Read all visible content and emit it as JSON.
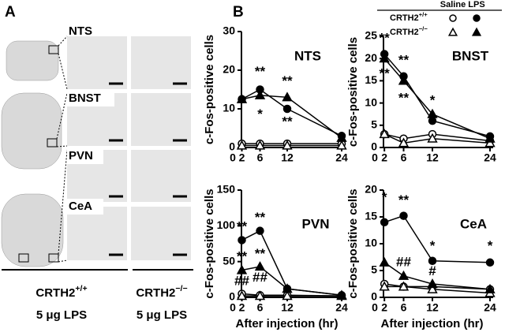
{
  "panel_a": {
    "letter": "A",
    "regions": [
      "NTS",
      "BNST",
      "PVN",
      "CeA"
    ],
    "groups": [
      {
        "base": "CRTH2",
        "sup": "+/+",
        "dose": "5 μg LPS"
      },
      {
        "base": "CRTH2",
        "sup": "−/−",
        "dose": "5 μg LPS"
      }
    ]
  },
  "panel_b": {
    "letter": "B",
    "legend": {
      "columns": [
        "Saline",
        "LPS"
      ],
      "rows": [
        {
          "base": "CRTH2",
          "sup": "+/+"
        },
        {
          "base": "CRTH2",
          "sup": "−/−"
        }
      ]
    }
  },
  "chart_data": [
    {
      "type": "line",
      "title": "NTS",
      "ylabel": "c-Fos-positive cells",
      "x": [
        2,
        6,
        12,
        24
      ],
      "xlim": [
        0,
        24
      ],
      "xticks": [
        0,
        2,
        6,
        12,
        24
      ],
      "ylim": [
        0,
        30
      ],
      "yticks": [
        0,
        10,
        20,
        30
      ],
      "series": [
        {
          "marker": "circle",
          "filled": false,
          "color": "#000000",
          "values": [
            1,
            1,
            1,
            1
          ]
        },
        {
          "marker": "circle",
          "filled": true,
          "color": "#000000",
          "values": [
            12.5,
            15,
            10,
            3
          ]
        },
        {
          "marker": "triangle",
          "filled": false,
          "color": "#000000",
          "values": [
            0.5,
            0.5,
            0.5,
            0.5
          ]
        },
        {
          "marker": "triangle",
          "filled": true,
          "color": "#000000",
          "values": [
            12.5,
            13.5,
            13,
            2.5
          ]
        }
      ],
      "annotations": [
        {
          "text": "**",
          "x": 6,
          "y": 19.5
        },
        {
          "text": "*",
          "x": 6,
          "y": 8.5
        },
        {
          "text": "**",
          "x": 12,
          "y": 17
        },
        {
          "text": "**",
          "x": 12,
          "y": 6.5
        }
      ]
    },
    {
      "type": "line",
      "title": "BNST",
      "ylabel": "c-Fos-positive cells",
      "x": [
        2,
        6,
        12,
        24
      ],
      "xlim": [
        0,
        24
      ],
      "xticks": [
        0,
        2,
        6,
        12,
        24
      ],
      "ylim": [
        0,
        25
      ],
      "yticks": [
        0,
        5,
        10,
        15,
        20,
        25
      ],
      "series": [
        {
          "marker": "circle",
          "filled": false,
          "color": "#000000",
          "values": [
            3,
            2,
            3,
            1.5
          ]
        },
        {
          "marker": "circle",
          "filled": true,
          "color": "#000000",
          "values": [
            21,
            16,
            6,
            2.5
          ]
        },
        {
          "marker": "triangle",
          "filled": false,
          "color": "#000000",
          "values": [
            3,
            1,
            2,
            1
          ]
        },
        {
          "marker": "triangle",
          "filled": true,
          "color": "#000000",
          "values": [
            20,
            15,
            7.5,
            2
          ]
        }
      ],
      "annotations": [
        {
          "text": "**",
          "x": 2,
          "y": 24.5
        },
        {
          "text": "**",
          "x": 2,
          "y": 16.5
        },
        {
          "text": "**",
          "x": 6,
          "y": 19.5
        },
        {
          "text": "**",
          "x": 6,
          "y": 11
        },
        {
          "text": "*",
          "x": 12,
          "y": 10.5
        }
      ]
    },
    {
      "type": "line",
      "title": "PVN",
      "ylabel": "c-Fos-positive cells",
      "xlabel": "After injection (hr)",
      "x": [
        2,
        6,
        12,
        24
      ],
      "xlim": [
        0,
        24
      ],
      "xticks": [
        0,
        2,
        6,
        12,
        24
      ],
      "ylim": [
        0,
        150
      ],
      "yticks": [
        0,
        50,
        100,
        150
      ],
      "series": [
        {
          "marker": "circle",
          "filled": false,
          "color": "#000000",
          "values": [
            5,
            3,
            3,
            2
          ]
        },
        {
          "marker": "circle",
          "filled": true,
          "color": "#000000",
          "values": [
            80,
            93,
            12,
            3
          ]
        },
        {
          "marker": "triangle",
          "filled": false,
          "color": "#000000",
          "values": [
            2,
            2,
            2,
            2
          ]
        },
        {
          "marker": "triangle",
          "filled": true,
          "color": "#000000",
          "values": [
            38,
            43,
            12,
            3
          ]
        }
      ],
      "annotations": [
        {
          "text": "**",
          "x": 2,
          "y": 98
        },
        {
          "text": "**",
          "x": 6,
          "y": 111
        },
        {
          "text": "**",
          "x": 2,
          "y": 56
        },
        {
          "text": "**",
          "x": 6,
          "y": 60
        },
        {
          "text": "##",
          "x": 2,
          "y": 22
        },
        {
          "text": "##",
          "x": 6,
          "y": 27
        }
      ]
    },
    {
      "type": "line",
      "title": "CeA",
      "ylabel": "c-Fos-positive cells",
      "xlabel": "After injection (hr)",
      "x": [
        2,
        6,
        12,
        24
      ],
      "xlim": [
        0,
        24
      ],
      "xticks": [
        0,
        2,
        6,
        12,
        24
      ],
      "ylim": [
        0,
        20
      ],
      "yticks": [
        0,
        5,
        10,
        15,
        20
      ],
      "series": [
        {
          "marker": "circle",
          "filled": false,
          "color": "#000000",
          "values": [
            2.5,
            2,
            2,
            1.5
          ]
        },
        {
          "marker": "circle",
          "filled": true,
          "color": "#000000",
          "values": [
            14,
            15.2,
            6.8,
            6.5
          ]
        },
        {
          "marker": "triangle",
          "filled": false,
          "color": "#000000",
          "values": [
            2,
            2,
            1.5,
            0.8
          ]
        },
        {
          "marker": "triangle",
          "filled": true,
          "color": "#000000",
          "values": [
            6.5,
            4,
            2.5,
            1.5
          ]
        }
      ],
      "annotations": [
        {
          "text": "*",
          "x": 2,
          "y": 18.5
        },
        {
          "text": "**",
          "x": 6,
          "y": 18
        },
        {
          "text": "*",
          "x": 12,
          "y": 9.5
        },
        {
          "text": "*",
          "x": 24,
          "y": 9.5
        },
        {
          "text": "##",
          "x": 6,
          "y": 6.5
        },
        {
          "text": "#",
          "x": 12,
          "y": 4.8
        }
      ]
    }
  ]
}
